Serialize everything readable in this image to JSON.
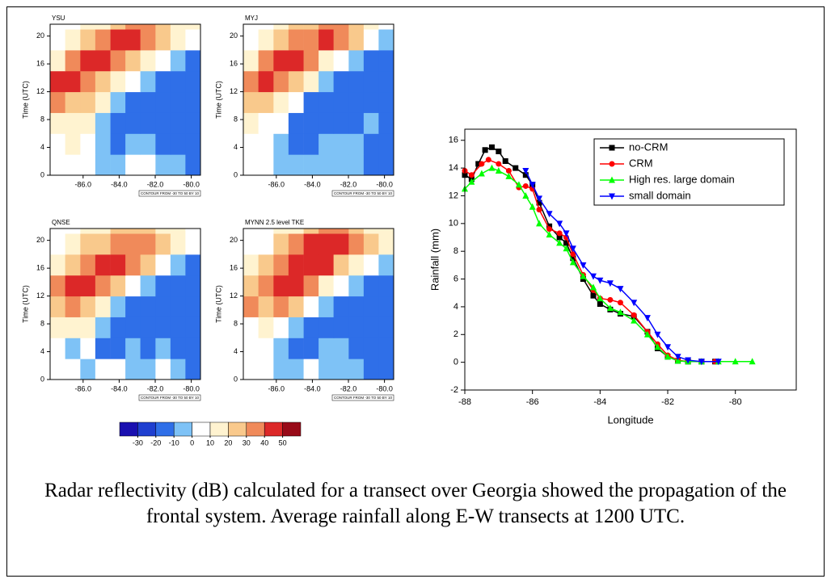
{
  "chart_data": [
    {
      "type": "heatmap",
      "title": "YSU",
      "y_label": "Time (UTC)",
      "note": "CONTOUR FROM -30 TO 50 BY 10",
      "xlim": [
        -87.83,
        -79.49
      ],
      "ylim": [
        0,
        21.7
      ],
      "xticks": [
        {
          "value": -86,
          "label": "-86.0"
        },
        {
          "value": -84,
          "label": "-84.0"
        },
        {
          "value": -82,
          "label": "-82.0"
        },
        {
          "value": -80,
          "label": "-80.0"
        }
      ],
      "yticks": [
        0,
        4,
        8,
        12,
        16,
        20
      ],
      "x": [
        -87.41,
        -86.58,
        -85.74,
        -84.91,
        -84.07,
        -83.24,
        -82.41,
        -81.57,
        -80.74,
        -79.91
      ],
      "y": [
        1.5,
        4.5,
        7.5,
        10.5,
        13.5,
        16.5,
        19.5,
        22.5
      ],
      "z": [
        [
          0,
          0,
          0,
          -10,
          -10,
          0,
          0,
          -10,
          -10,
          -20
        ],
        [
          0,
          10,
          0,
          -10,
          -20,
          -10,
          -10,
          -20,
          -20,
          -20
        ],
        [
          10,
          10,
          10,
          -10,
          -20,
          -20,
          -20,
          -20,
          -20,
          -20
        ],
        [
          30,
          20,
          20,
          10,
          -10,
          -20,
          -20,
          -20,
          -20,
          -20
        ],
        [
          40,
          40,
          30,
          20,
          10,
          0,
          -10,
          -20,
          -20,
          -20
        ],
        [
          10,
          30,
          40,
          40,
          30,
          20,
          10,
          0,
          -10,
          -20
        ],
        [
          0,
          10,
          20,
          30,
          40,
          40,
          30,
          20,
          10,
          0
        ],
        [
          0,
          0,
          10,
          10,
          20,
          30,
          30,
          20,
          10,
          10
        ]
      ]
    },
    {
      "type": "heatmap",
      "title": "MYJ",
      "y_label": "Time (UTC)",
      "note": "CONTOUR FROM -30 TO 50 BY 10",
      "xlim": [
        -87.83,
        -79.49
      ],
      "ylim": [
        0,
        21.7
      ],
      "xticks": [
        {
          "value": -86,
          "label": "-86.0"
        },
        {
          "value": -84,
          "label": "-84.0"
        },
        {
          "value": -82,
          "label": "-82.0"
        },
        {
          "value": -80,
          "label": "-80.0"
        }
      ],
      "yticks": [
        0,
        4,
        8,
        12,
        16,
        20
      ],
      "x": [
        -87.41,
        -86.58,
        -85.74,
        -84.91,
        -84.07,
        -83.24,
        -82.41,
        -81.57,
        -80.74,
        -79.91
      ],
      "y": [
        1.5,
        4.5,
        7.5,
        10.5,
        13.5,
        16.5,
        19.5,
        22.5
      ],
      "z": [
        [
          0,
          0,
          -10,
          -10,
          -10,
          -10,
          -10,
          -10,
          -20,
          -20
        ],
        [
          0,
          0,
          -10,
          -20,
          -20,
          -10,
          -10,
          -10,
          -20,
          -20
        ],
        [
          10,
          0,
          0,
          -20,
          -20,
          -20,
          -20,
          -20,
          -10,
          -20
        ],
        [
          20,
          20,
          10,
          0,
          -20,
          -20,
          -20,
          -20,
          -20,
          -20
        ],
        [
          30,
          40,
          30,
          20,
          10,
          -10,
          -20,
          -20,
          -20,
          -20
        ],
        [
          10,
          30,
          40,
          40,
          30,
          10,
          0,
          -10,
          -20,
          -20
        ],
        [
          0,
          10,
          20,
          30,
          30,
          40,
          30,
          20,
          0,
          -10
        ],
        [
          0,
          0,
          10,
          20,
          20,
          30,
          30,
          20,
          10,
          0
        ]
      ]
    },
    {
      "type": "heatmap",
      "title": "QNSE",
      "y_label": "Time (UTC)",
      "note": "CONTOUR FROM -30 TO 50 BY 10",
      "xlim": [
        -87.83,
        -79.49
      ],
      "ylim": [
        0,
        21.7
      ],
      "xticks": [
        {
          "value": -86,
          "label": "-86.0"
        },
        {
          "value": -84,
          "label": "-84.0"
        },
        {
          "value": -82,
          "label": "-82.0"
        },
        {
          "value": -80,
          "label": "-80.0"
        }
      ],
      "yticks": [
        0,
        4,
        8,
        12,
        16,
        20
      ],
      "x": [
        -87.41,
        -86.58,
        -85.74,
        -84.91,
        -84.07,
        -83.24,
        -82.41,
        -81.57,
        -80.74,
        -79.91
      ],
      "y": [
        1.5,
        4.5,
        7.5,
        10.5,
        13.5,
        16.5,
        19.5,
        22.5
      ],
      "z": [
        [
          0,
          0,
          -10,
          0,
          0,
          -10,
          -10,
          0,
          -10,
          -20
        ],
        [
          0,
          -10,
          0,
          -20,
          -20,
          -10,
          -20,
          -10,
          -20,
          -20
        ],
        [
          10,
          10,
          10,
          -10,
          -20,
          -20,
          -20,
          -20,
          -20,
          -20
        ],
        [
          20,
          30,
          20,
          10,
          -10,
          -20,
          -20,
          -20,
          -20,
          -20
        ],
        [
          30,
          40,
          40,
          30,
          20,
          0,
          -10,
          -20,
          -20,
          -20
        ],
        [
          10,
          20,
          30,
          40,
          40,
          30,
          20,
          0,
          -10,
          -20
        ],
        [
          0,
          10,
          20,
          20,
          30,
          30,
          30,
          20,
          10,
          0
        ],
        [
          0,
          0,
          10,
          10,
          20,
          20,
          20,
          10,
          10,
          0
        ]
      ]
    },
    {
      "type": "heatmap",
      "title": "MYNN 2.5 level TKE",
      "y_label": "Time (UTC)",
      "note": "CONTOUR FROM -30 TO 50 BY 10",
      "xlim": [
        -87.83,
        -79.49
      ],
      "ylim": [
        0,
        21.7
      ],
      "xticks": [
        {
          "value": -86,
          "label": "-86.0"
        },
        {
          "value": -84,
          "label": "-84.0"
        },
        {
          "value": -82,
          "label": "-82.0"
        },
        {
          "value": -80,
          "label": "-80.0"
        }
      ],
      "yticks": [
        0,
        4,
        8,
        12,
        16,
        20
      ],
      "x": [
        -87.41,
        -86.58,
        -85.74,
        -84.91,
        -84.07,
        -83.24,
        -82.41,
        -81.57,
        -80.74,
        -79.91
      ],
      "y": [
        1.5,
        4.5,
        7.5,
        10.5,
        13.5,
        16.5,
        19.5,
        22.5
      ],
      "z": [
        [
          0,
          0,
          -10,
          -10,
          0,
          -10,
          -10,
          -10,
          -20,
          -20
        ],
        [
          0,
          0,
          -10,
          -20,
          -20,
          -10,
          -10,
          -20,
          -20,
          -20
        ],
        [
          0,
          10,
          0,
          -10,
          -20,
          -20,
          -20,
          -20,
          -20,
          -20
        ],
        [
          30,
          20,
          30,
          20,
          0,
          -10,
          -20,
          -20,
          -20,
          -20
        ],
        [
          20,
          30,
          40,
          40,
          30,
          10,
          0,
          -10,
          -20,
          -20
        ],
        [
          10,
          20,
          30,
          40,
          40,
          40,
          20,
          10,
          0,
          -10
        ],
        [
          0,
          0,
          20,
          30,
          40,
          40,
          40,
          30,
          20,
          10
        ],
        [
          0,
          0,
          10,
          10,
          20,
          30,
          30,
          20,
          10,
          10
        ]
      ]
    },
    {
      "type": "line",
      "x_label": "Longitude",
      "y_label": "Rainfall (mm)",
      "legend": "upper right",
      "xlim": [
        -88,
        -78.2
      ],
      "ylim": [
        -2,
        16.8
      ],
      "xticks": [
        -88,
        -86,
        -84,
        -82,
        -80
      ],
      "yticks": [
        -2,
        0,
        2,
        4,
        6,
        8,
        10,
        12,
        14,
        16
      ],
      "series": [
        {
          "name": "no-CRM",
          "color": "#000000",
          "marker": "square",
          "x": [
            -88,
            -87.8,
            -87.6,
            -87.4,
            -87.2,
            -87,
            -86.8,
            -86.5,
            -86.2,
            -86,
            -85.8,
            -85.5,
            -85.2,
            -85,
            -84.8,
            -84.5,
            -84.2,
            -84,
            -83.7,
            -83.4,
            -83,
            -82.6,
            -82.3,
            -82,
            -81.7,
            -81.4,
            -81,
            -80.6
          ],
          "values": [
            13.5,
            13.2,
            14.3,
            15.3,
            15.5,
            15.2,
            14.5,
            14,
            13.5,
            12.8,
            11.5,
            9.8,
            9,
            8.6,
            7.5,
            6,
            4.8,
            4.2,
            3.8,
            3.5,
            3.3,
            2.2,
            1,
            0.4,
            0.1,
            0.05,
            0.05,
            0.05
          ]
        },
        {
          "name": "CRM",
          "color": "#ff0000",
          "marker": "circle",
          "x": [
            -88,
            -87.8,
            -87.5,
            -87.3,
            -87,
            -86.7,
            -86.4,
            -86.2,
            -86,
            -85.8,
            -85.5,
            -85.2,
            -85,
            -84.8,
            -84.5,
            -84.2,
            -84,
            -83.7,
            -83.4,
            -83,
            -82.6,
            -82.3,
            -82,
            -81.7,
            -81.4,
            -81,
            -80.6
          ],
          "values": [
            13.8,
            13.5,
            14.3,
            14.6,
            14.3,
            13.8,
            12.6,
            12.7,
            12.5,
            11,
            9.6,
            9.3,
            9,
            7.8,
            6.3,
            5.2,
            4.6,
            4.5,
            4.3,
            3.4,
            2.2,
            1.3,
            0.5,
            0.15,
            0.05,
            0.05,
            0.05
          ]
        },
        {
          "name": "High res. large domain",
          "color": "#00ff00",
          "marker": "triangle-up",
          "x": [
            -88,
            -87.8,
            -87.5,
            -87.2,
            -87,
            -86.7,
            -86.4,
            -86.2,
            -86,
            -85.8,
            -85.5,
            -85.2,
            -85,
            -84.8,
            -84.5,
            -84.2,
            -84,
            -83.7,
            -83.4,
            -83,
            -82.6,
            -82.3,
            -82,
            -81.7,
            -81.4,
            -81,
            -80.5,
            -80,
            -79.5
          ],
          "values": [
            12.5,
            13,
            13.6,
            14,
            13.8,
            13.4,
            12.8,
            12,
            11.2,
            10,
            9.2,
            8.6,
            8.2,
            7.2,
            6.2,
            5.4,
            4.6,
            3.9,
            3.6,
            3,
            2,
            1.1,
            0.4,
            0.1,
            0.05,
            0.05,
            0.05,
            0.05,
            0.05
          ]
        },
        {
          "name": "small domain",
          "color": "#0000ff",
          "marker": "triangle-down",
          "x": [
            -86.2,
            -86,
            -85.8,
            -85.5,
            -85.2,
            -85,
            -84.8,
            -84.5,
            -84.2,
            -84,
            -83.7,
            -83.4,
            -83,
            -82.6,
            -82.3,
            -82,
            -81.7,
            -81.4,
            -81,
            -80.5
          ],
          "values": [
            13.8,
            12.8,
            11.8,
            10.7,
            10,
            9.3,
            8.2,
            7,
            6.2,
            5.9,
            5.7,
            5.3,
            4.3,
            3.2,
            2,
            1.1,
            0.4,
            0.15,
            0.05,
            0.05
          ]
        }
      ]
    }
  ],
  "colorbar": {
    "levels": [
      -30,
      -20,
      -10,
      0,
      10,
      20,
      30,
      40,
      50
    ],
    "colors": [
      "#1a10b0",
      "#1f3fd0",
      "#2f6fe8",
      "#7ec2f6",
      "#ffffff",
      "#fff3d0",
      "#f9c98c",
      "#f08a5a",
      "#dc2828",
      "#980a18"
    ]
  },
  "caption": "Radar reflectivity (dB) calculated for a transect over Georgia showed the propagation of the frontal system. Average rainfall along E-W transects at 1200 UTC."
}
